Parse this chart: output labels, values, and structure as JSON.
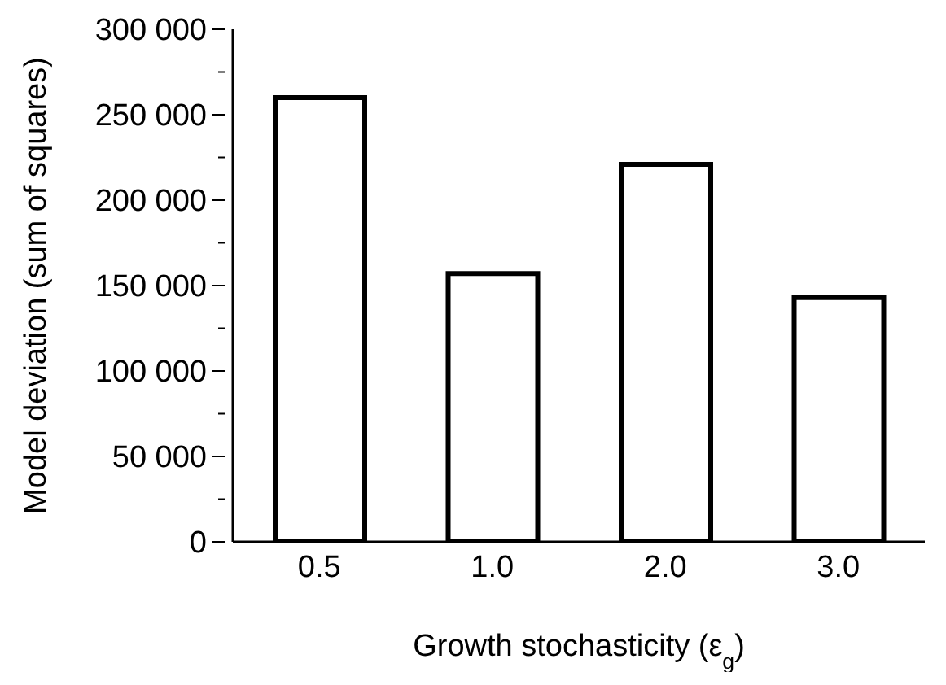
{
  "chart_data": {
    "type": "bar",
    "categories": [
      "0.5",
      "1.0",
      "2.0",
      "3.0"
    ],
    "values": [
      260000,
      157000,
      221000,
      143000
    ],
    "color": "#ffffff",
    "xlabel": "Growth stochasticity (ε$_{g}$)",
    "ylabel": "Model deviation (sum of squares)",
    "ylim": [
      0,
      300000
    ],
    "yticks": [
      {
        "value": 0,
        "label": "0"
      },
      {
        "value": 25000,
        "label": null
      },
      {
        "value": 50000,
        "label": "50 000"
      },
      {
        "value": 75000,
        "label": null
      },
      {
        "value": 100000,
        "label": "100 000"
      },
      {
        "value": 125000,
        "label": null
      },
      {
        "value": 150000,
        "label": "150 000"
      },
      {
        "value": 175000,
        "label": null
      },
      {
        "value": 200000,
        "label": "200 000"
      },
      {
        "value": 225000,
        "label": null
      },
      {
        "value": 250000,
        "label": "250 000"
      },
      {
        "value": 275000,
        "label": null
      },
      {
        "value": 300000,
        "label": "300 000"
      }
    ],
    "grid": false,
    "legend": false
  }
}
